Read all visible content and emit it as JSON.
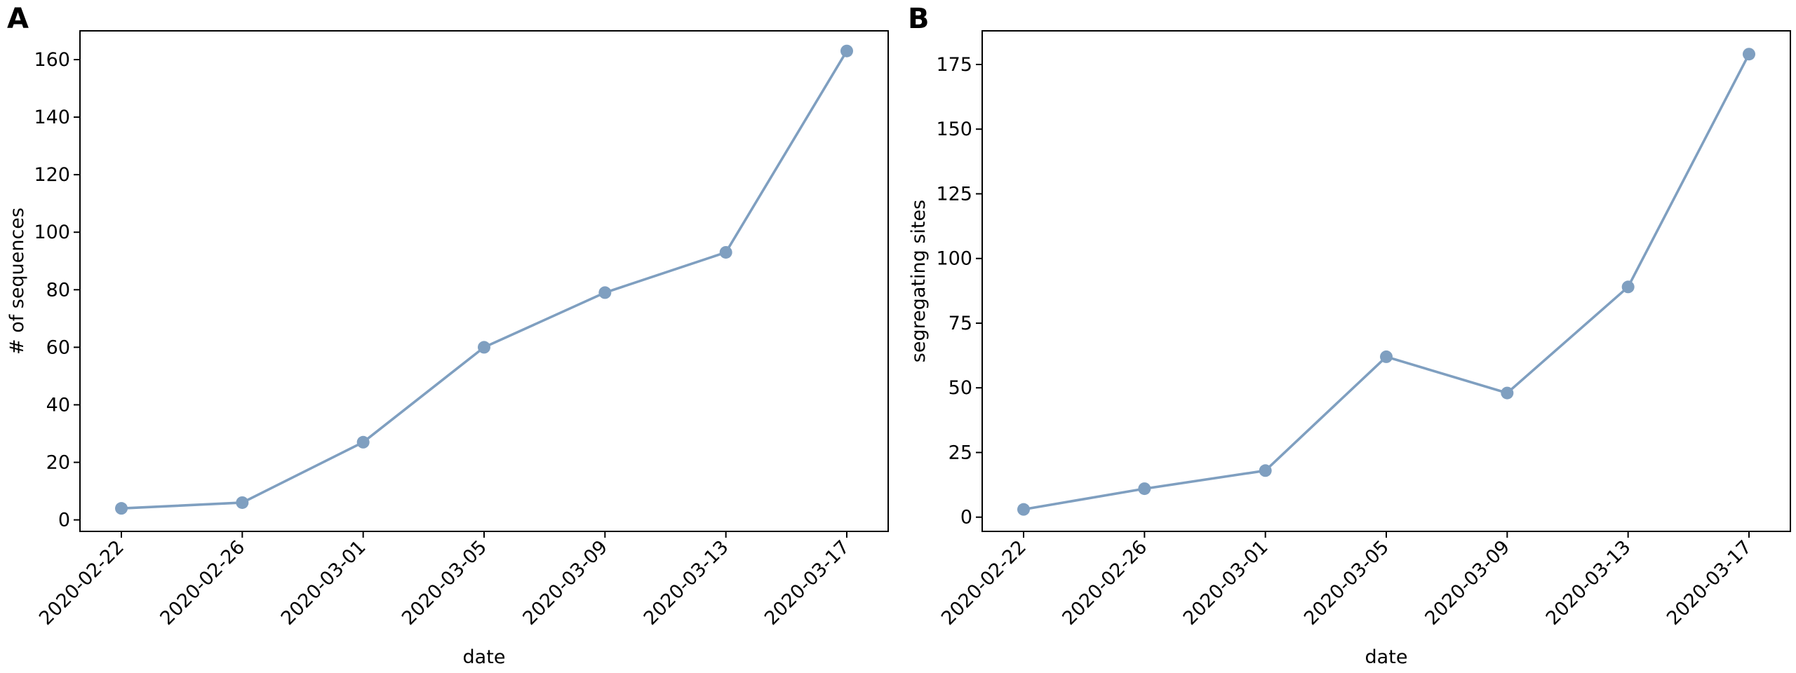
{
  "figure": {
    "panels": [
      "A",
      "B"
    ]
  },
  "chart_data": [
    {
      "type": "line",
      "panel": "A",
      "title": "",
      "xlabel": "date",
      "ylabel": "# of sequences",
      "x": [
        "2020-02-22",
        "2020-02-26",
        "2020-03-01",
        "2020-03-05",
        "2020-03-09",
        "2020-03-13",
        "2020-03-17"
      ],
      "values": [
        4,
        6,
        27,
        60,
        79,
        93,
        163
      ],
      "yticks": [
        0,
        20,
        40,
        60,
        80,
        100,
        120,
        140,
        160
      ],
      "ylim": [
        -4,
        170
      ],
      "grid": false,
      "color": "#7f9fc0"
    },
    {
      "type": "line",
      "panel": "B",
      "title": "",
      "xlabel": "date",
      "ylabel": "segregating sites",
      "x": [
        "2020-02-22",
        "2020-02-26",
        "2020-03-01",
        "2020-03-05",
        "2020-03-09",
        "2020-03-13",
        "2020-03-17"
      ],
      "values": [
        3,
        11,
        18,
        62,
        48,
        89,
        179
      ],
      "yticks": [
        0,
        25,
        50,
        75,
        100,
        125,
        150,
        175
      ],
      "ylim": [
        -5.5,
        188
      ],
      "grid": false,
      "color": "#7f9fc0"
    }
  ]
}
